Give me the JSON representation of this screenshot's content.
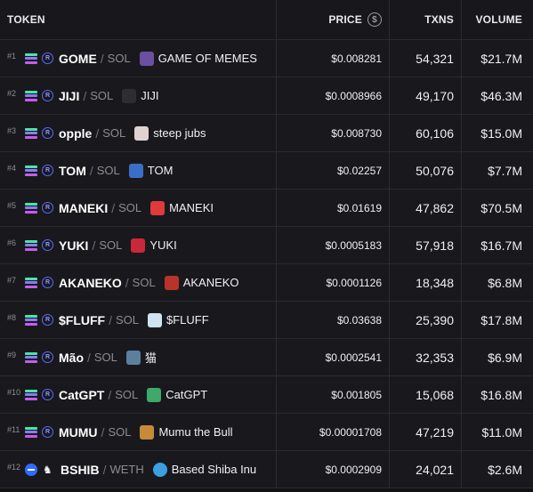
{
  "header": {
    "token": "TOKEN",
    "price": "PRICE",
    "price_icon": "$",
    "txns": "TXNS",
    "volume": "VOLUME"
  },
  "rows": [
    {
      "rank": "#1",
      "chain": "solana",
      "symbol": "GOME",
      "quote": "SOL",
      "name": "GAME OF MEMES",
      "avatar_color": "#6b4fa0",
      "avatar_glyph": "",
      "price": "$0.008281",
      "txns": "54,321",
      "volume": "$21.7M"
    },
    {
      "rank": "#2",
      "chain": "solana",
      "symbol": "JIJI",
      "quote": "SOL",
      "name": "JIJI",
      "avatar_color": "#2d2d33",
      "avatar_glyph": "",
      "price": "$0.0008966",
      "txns": "49,170",
      "volume": "$46.3M"
    },
    {
      "rank": "#3",
      "chain": "solana",
      "symbol": "opple",
      "quote": "SOL",
      "name": "steep jubs",
      "avatar_color": "#e0d2d0",
      "avatar_glyph": "",
      "price": "$0.008730",
      "txns": "60,106",
      "volume": "$15.0M"
    },
    {
      "rank": "#4",
      "chain": "solana",
      "symbol": "TOM",
      "quote": "SOL",
      "name": "TOM",
      "avatar_color": "#3b6fc7",
      "avatar_glyph": "",
      "price": "$0.02257",
      "txns": "50,076",
      "volume": "$7.7M"
    },
    {
      "rank": "#5",
      "chain": "solana",
      "symbol": "MANEKI",
      "quote": "SOL",
      "name": "MANEKI",
      "avatar_color": "#e03a3a",
      "avatar_glyph": "",
      "price": "$0.01619",
      "txns": "47,862",
      "volume": "$70.5M"
    },
    {
      "rank": "#6",
      "chain": "solana",
      "symbol": "YUKI",
      "quote": "SOL",
      "name": "YUKI",
      "avatar_color": "#c9283a",
      "avatar_glyph": "",
      "price": "$0.0005183",
      "txns": "57,918",
      "volume": "$16.7M"
    },
    {
      "rank": "#7",
      "chain": "solana",
      "symbol": "AKANEKO",
      "quote": "SOL",
      "name": "AKANEKO",
      "avatar_color": "#b8332a",
      "avatar_glyph": "",
      "price": "$0.0001126",
      "txns": "18,348",
      "volume": "$6.8M"
    },
    {
      "rank": "#8",
      "chain": "solana",
      "symbol": "$FLUFF",
      "quote": "SOL",
      "name": "$FLUFF",
      "avatar_color": "#cfe3f0",
      "avatar_glyph": "",
      "price": "$0.03638",
      "txns": "25,390",
      "volume": "$17.8M"
    },
    {
      "rank": "#9",
      "chain": "solana",
      "symbol": "Mão",
      "quote": "SOL",
      "name": "猫",
      "avatar_color": "#5c7fa0",
      "avatar_glyph": "",
      "price": "$0.0002541",
      "txns": "32,353",
      "volume": "$6.9M"
    },
    {
      "rank": "#10",
      "chain": "solana",
      "symbol": "CatGPT",
      "quote": "SOL",
      "name": "CatGPT",
      "avatar_color": "#3fa86a",
      "avatar_glyph": "",
      "price": "$0.001805",
      "txns": "15,068",
      "volume": "$16.8M"
    },
    {
      "rank": "#11",
      "chain": "solana",
      "symbol": "MUMU",
      "quote": "SOL",
      "name": "Mumu the Bull",
      "avatar_color": "#c7893a",
      "avatar_glyph": "",
      "price": "$0.00001708",
      "txns": "47,219",
      "volume": "$11.0M"
    },
    {
      "rank": "#12",
      "chain": "base",
      "symbol": "BSHIB",
      "quote": "WETH",
      "name": "Based Shiba Inu",
      "avatar_color": "#3aa0e0",
      "avatar_glyph": "",
      "price": "$0.0002909",
      "txns": "24,021",
      "volume": "$2.6M"
    }
  ]
}
